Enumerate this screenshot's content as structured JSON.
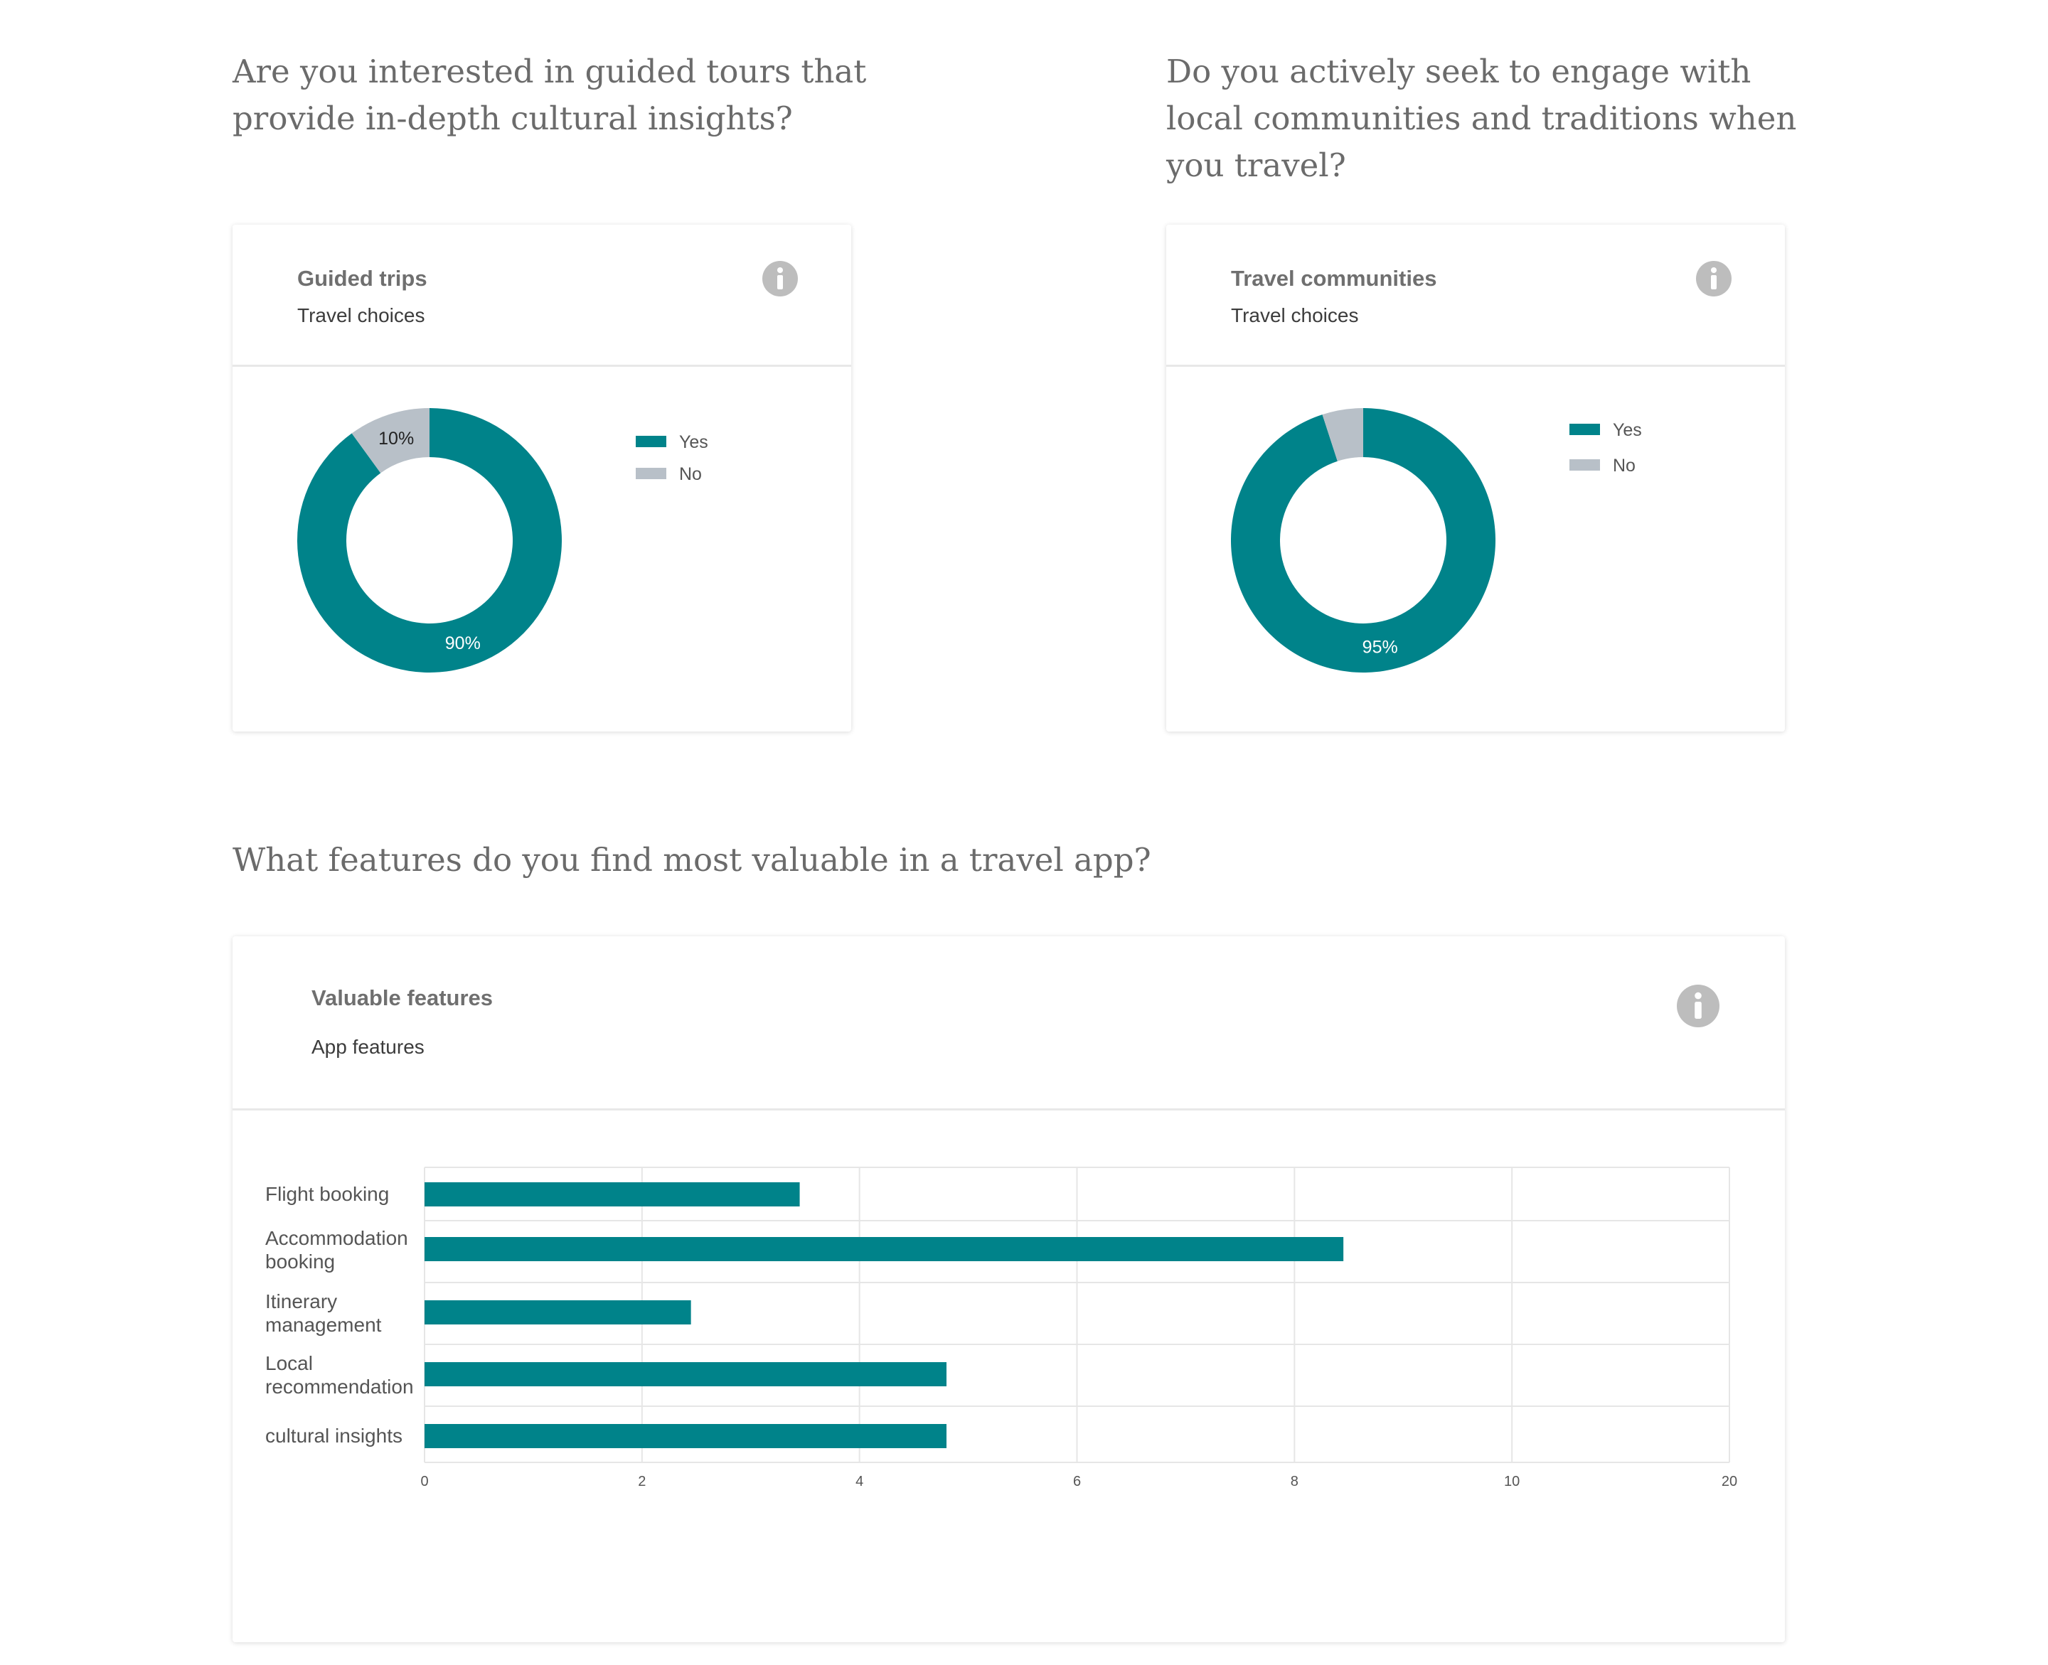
{
  "questions": {
    "q1": "Are you interested in guided tours that provide in-depth cultural insights?",
    "q2": "Do you actively seek to engage with local communities and traditions when you travel?",
    "q3": "What features do you find most valuable in a travel app?"
  },
  "cards": {
    "guided": {
      "title": "Guided trips",
      "subtitle": "Travel choices",
      "info_icon": "info-icon"
    },
    "communities": {
      "title": "Travel communities",
      "subtitle": "Travel choices",
      "info_icon": "info-icon"
    },
    "features": {
      "title": "Valuable features",
      "subtitle": "App features",
      "info_icon": "info-icon"
    }
  },
  "colors": {
    "teal": "#00838a",
    "gray": "#b8c0c8",
    "grid": "#e6e6e6",
    "icon": "#bdbdbd"
  },
  "chart_data": [
    {
      "type": "pie",
      "variant": "donut",
      "categories": [
        "Yes",
        "No"
      ],
      "values": [
        90,
        10
      ],
      "data_labels": [
        "90%",
        "10%"
      ],
      "legend_position": "right"
    },
    {
      "type": "pie",
      "variant": "donut",
      "categories": [
        "Yes",
        "No"
      ],
      "values": [
        95,
        5
      ],
      "data_labels": [
        "95%",
        ""
      ],
      "legend_position": "right"
    },
    {
      "type": "bar",
      "orientation": "horizontal",
      "categories": [
        "Flight booking",
        "Accommodation booking",
        "Itinerary management",
        "Local recommendation",
        "cultural insights"
      ],
      "values": [
        3.45,
        8.45,
        2.45,
        4.8,
        4.8
      ],
      "x_ticks": [
        "0",
        "2",
        "4",
        "6",
        "8",
        "10",
        "20"
      ],
      "grid": true,
      "legend": false
    }
  ]
}
